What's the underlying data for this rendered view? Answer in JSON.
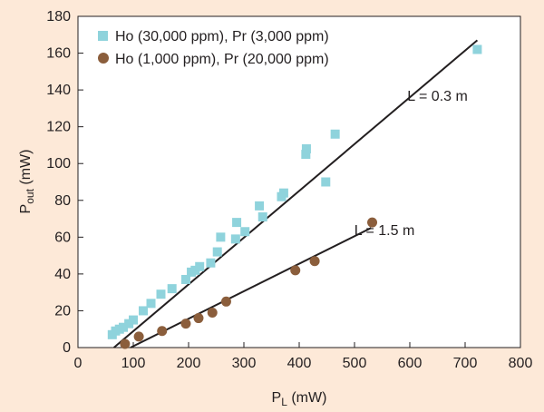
{
  "chart_data": {
    "type": "scatter",
    "title": "",
    "xlabel": {
      "main": "P",
      "sub": "L",
      "unit": " (mW)"
    },
    "ylabel": {
      "main": "P",
      "sub": "out",
      "unit": " (mW)"
    },
    "xlim": [
      0,
      800
    ],
    "ylim": [
      0,
      180
    ],
    "xticks": [
      0,
      100,
      200,
      300,
      400,
      500,
      600,
      700,
      800
    ],
    "yticks": [
      0,
      20,
      40,
      60,
      80,
      100,
      120,
      140,
      160,
      180
    ],
    "grid": false,
    "legend_position": "top-left",
    "series": [
      {
        "name": "Ho (30,000 ppm), Pr (3,000 ppm)",
        "marker": "square",
        "color": "#8fd3dc",
        "x": [
          62,
          68,
          75,
          82,
          92,
          100,
          118,
          132,
          150,
          170,
          195,
          205,
          212,
          220,
          240,
          252,
          258,
          285,
          287,
          302,
          328,
          334,
          368,
          372,
          412,
          413,
          448,
          465,
          722
        ],
        "y": [
          7,
          9,
          10,
          11,
          13,
          15,
          20,
          24,
          29,
          32,
          37,
          41,
          42,
          44,
          46,
          52,
          60,
          59,
          68,
          63,
          77,
          71,
          82,
          84,
          105,
          108,
          90,
          116,
          162
        ],
        "fit_line": {
          "x": [
            65,
            722
          ],
          "y": [
            0,
            167
          ]
        },
        "annotation": {
          "text": "L = 0.3 m",
          "x": 648,
          "y": 137
        }
      },
      {
        "name": "Ho (1,000 ppm), Pr (20,000 ppm)",
        "marker": "circle",
        "color": "#8b5e3c",
        "x": [
          85,
          110,
          152,
          195,
          218,
          243,
          268,
          393,
          428,
          532
        ],
        "y": [
          2,
          6,
          9,
          13,
          16,
          19,
          25,
          42,
          47,
          68
        ],
        "fit_line": {
          "x": [
            95,
            530
          ],
          "y": [
            0,
            65
          ]
        },
        "annotation": {
          "text": "L = 1.5 m",
          "x": 552,
          "y": 64
        }
      }
    ]
  }
}
